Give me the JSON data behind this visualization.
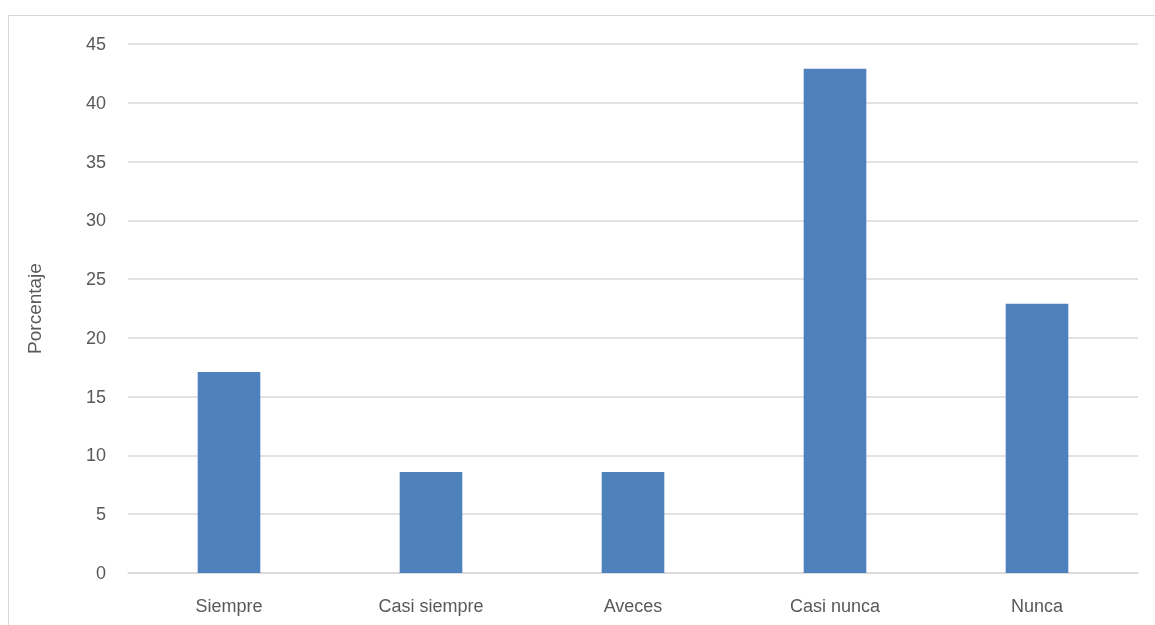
{
  "chart_data": {
    "type": "bar",
    "ylabel": "Porcentaje",
    "categories": [
      "Siempre",
      "Casi siempre",
      "Aveces",
      "Casi nunca",
      "Nunca"
    ],
    "values": [
      17.1,
      8.6,
      8.6,
      42.9,
      22.9
    ],
    "color": "#4f81bd",
    "ylim": [
      0,
      45
    ],
    "yticks": [
      0,
      5,
      10,
      15,
      20,
      25,
      30,
      35,
      40,
      45
    ],
    "grid": true
  }
}
